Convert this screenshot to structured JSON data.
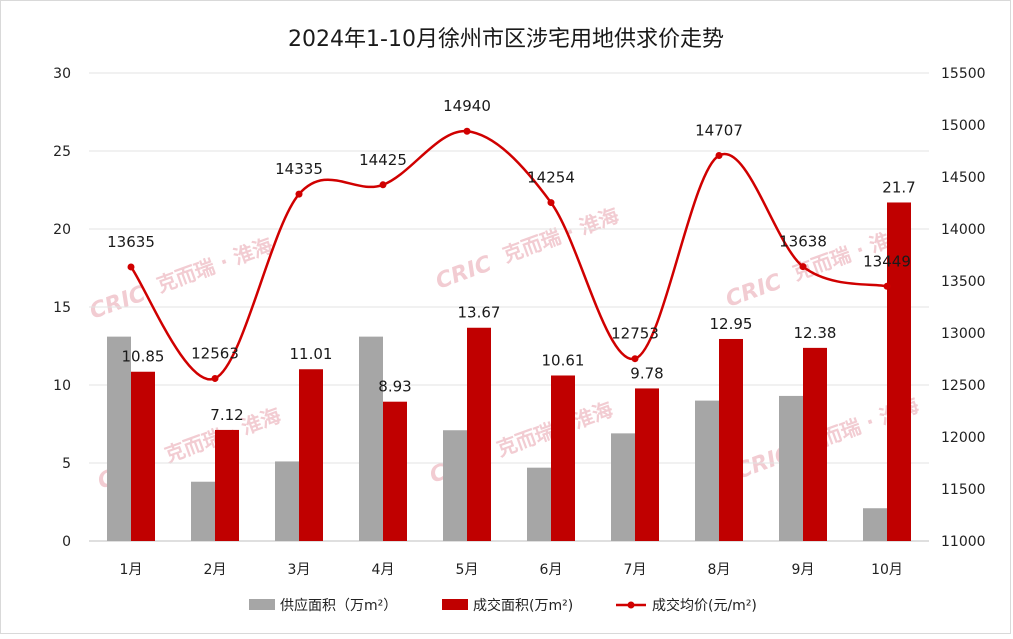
{
  "chart_data": {
    "type": "bar+line",
    "title": "2024年1-10月徐州市区涉宅用地供求价走势",
    "categories": [
      "1月",
      "2月",
      "3月",
      "4月",
      "5月",
      "6月",
      "7月",
      "8月",
      "9月",
      "10月"
    ],
    "series": [
      {
        "name": "供应面积（万m²）",
        "type": "bar",
        "axis": "left",
        "color": "#a6a6a6",
        "values": [
          13.1,
          3.8,
          5.1,
          13.1,
          7.1,
          4.7,
          6.9,
          9.0,
          9.3,
          2.1
        ]
      },
      {
        "name": "成交面积(万m²)",
        "type": "bar",
        "axis": "left",
        "color": "#c00000",
        "values": [
          10.85,
          7.12,
          11.01,
          8.93,
          13.67,
          10.61,
          9.78,
          12.95,
          12.38,
          21.7
        ]
      },
      {
        "name": "成交均价(元/m²)",
        "type": "line",
        "axis": "right",
        "color": "#d00000",
        "values": [
          13635,
          12563,
          14335,
          14425,
          14940,
          14254,
          12753,
          14707,
          13638,
          13449
        ]
      }
    ],
    "left_axis": {
      "min": 0,
      "max": 30,
      "ticks": [
        "0",
        "5",
        "10",
        "15",
        "20",
        "25",
        "30"
      ]
    },
    "right_axis": {
      "min": 11000,
      "max": 15500,
      "ticks": [
        "11000",
        "11500",
        "12000",
        "12500",
        "13000",
        "13500",
        "14000",
        "14500",
        "15000",
        "15500"
      ]
    },
    "bar_labels": [
      "10.85",
      "7.12",
      "11.01",
      "8.93",
      "13.67",
      "10.61",
      "9.78",
      "12.95",
      "12.38",
      "21.7"
    ],
    "line_labels": [
      "13635",
      "12563",
      "14335",
      "14425",
      "14940",
      "14254",
      "12753",
      "14707",
      "13638",
      "13449"
    ],
    "grid": true,
    "legend_position": "bottom"
  },
  "watermark": {
    "logo": "CRIC",
    "text": "克而瑞 · 淮海"
  }
}
